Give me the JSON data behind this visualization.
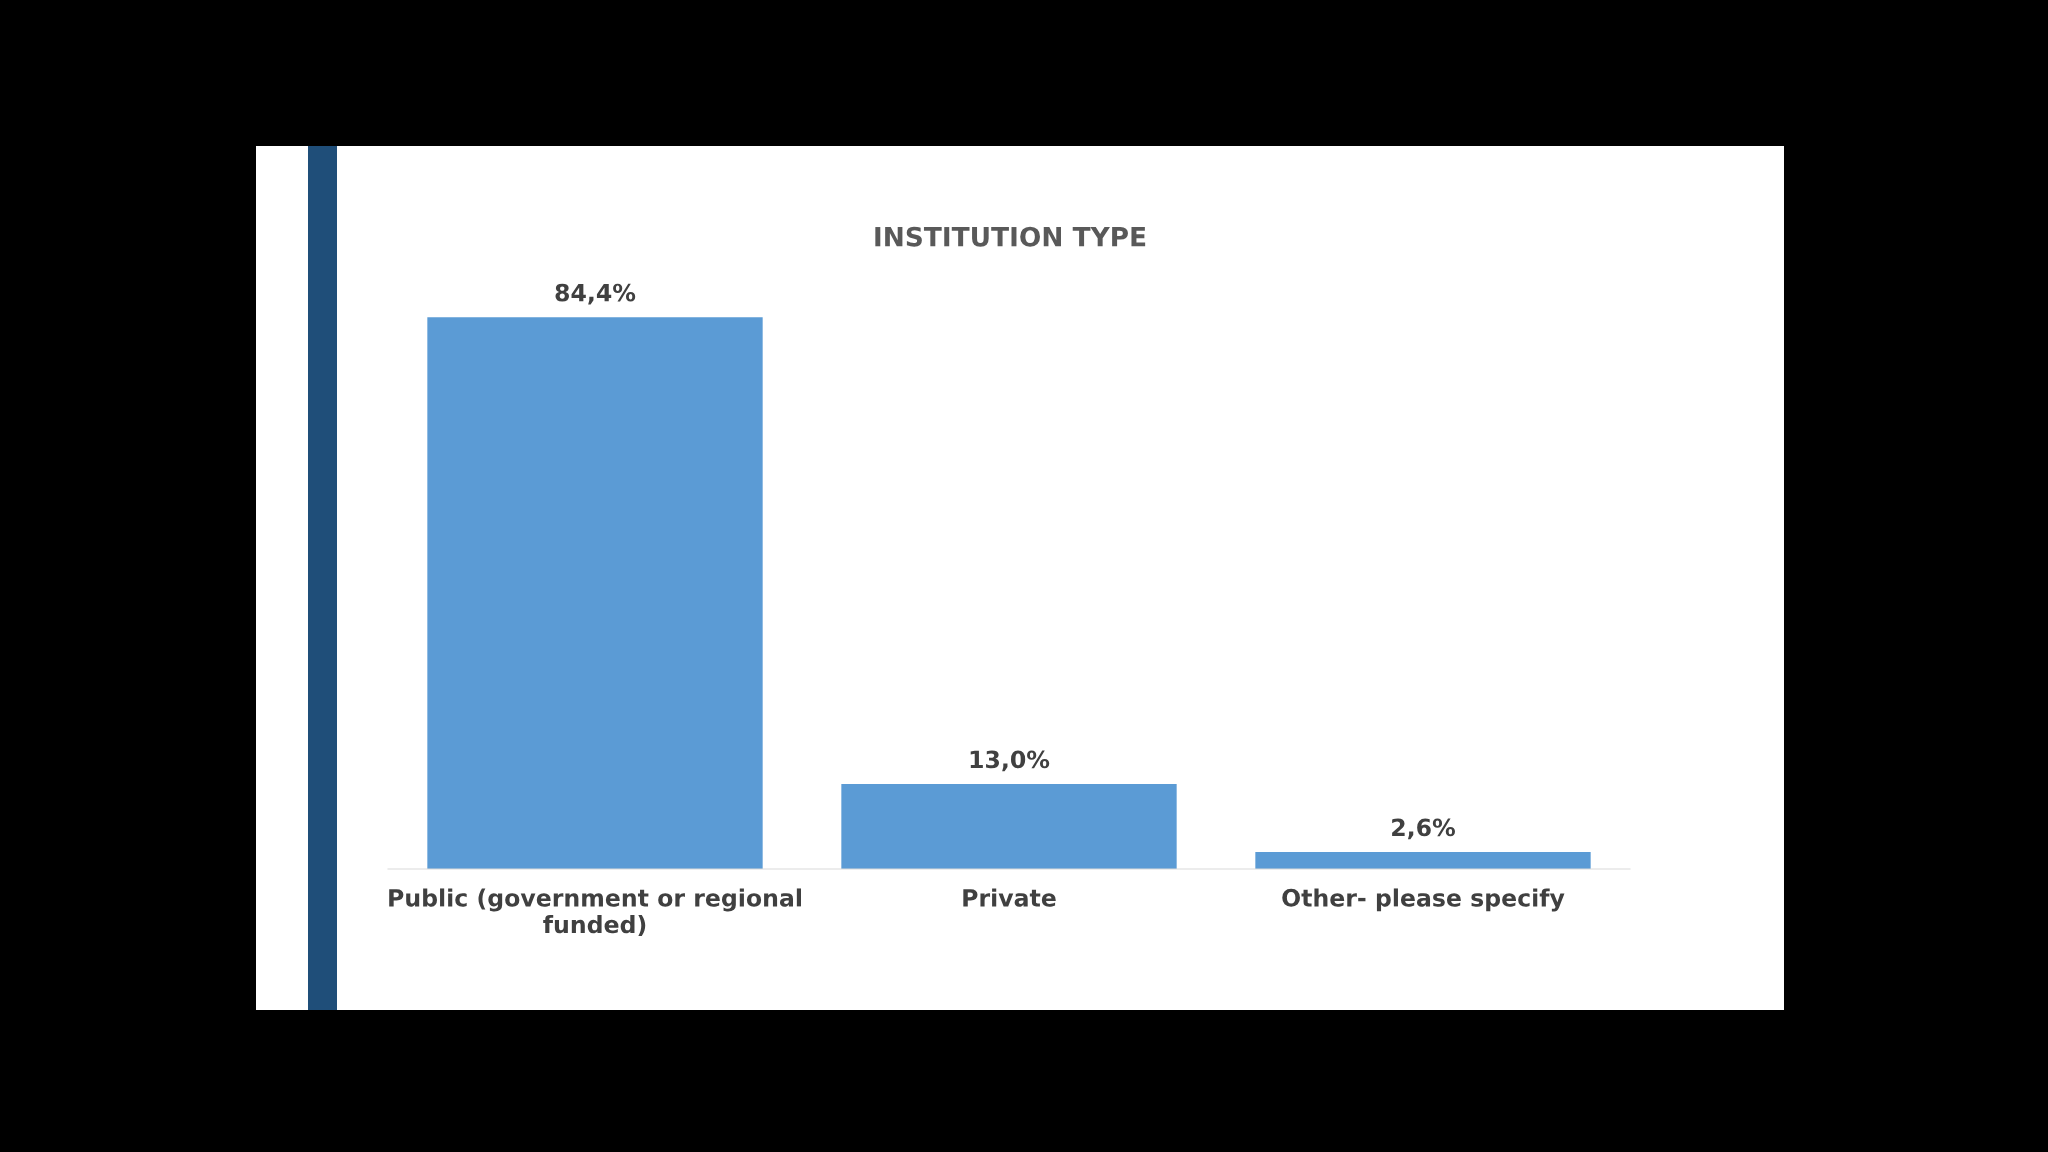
{
  "chart_data": {
    "type": "bar",
    "title": "INSTITUTION TYPE",
    "categories": [
      "Public (government or regional\nfunded)",
      "Private",
      "Other- please specify"
    ],
    "values": [
      84.4,
      13.0,
      2.6
    ],
    "value_labels": [
      "84,4%",
      "13,0%",
      "2,6%"
    ],
    "color": "#5b9bd5",
    "grid": false,
    "legend": false
  }
}
